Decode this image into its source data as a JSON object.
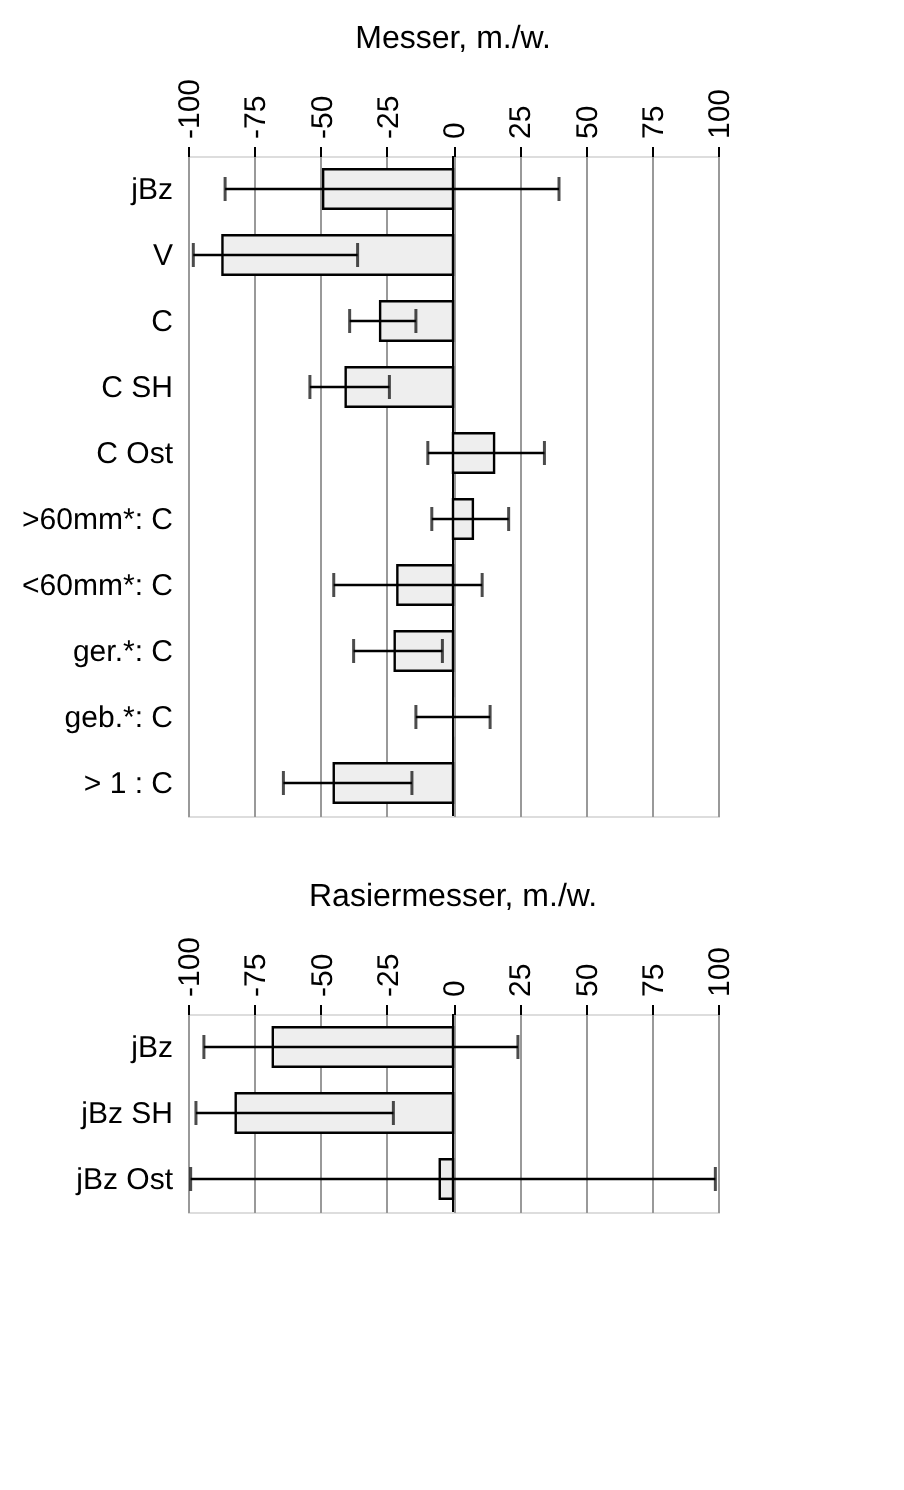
{
  "chart_data": [
    {
      "type": "bar",
      "orientation": "horizontal",
      "title": "Messer, m./w.",
      "categories": [
        "jBz",
        "V",
        "C",
        "C SH",
        "C Ost",
        ">60mm*: C",
        "<60mm*: C",
        "ger.*: C",
        "geb.*: C",
        "> 1 : C"
      ],
      "values": [
        -49,
        -87,
        -27.5,
        -40.5,
        15.5,
        7.5,
        -21,
        -22,
        0,
        -45
      ],
      "errors": [
        [
          -86,
          40
        ],
        [
          -98,
          -36
        ],
        [
          -39,
          -14
        ],
        [
          -54,
          -24
        ],
        [
          -9.5,
          34.5
        ],
        [
          -8,
          21
        ],
        [
          -45,
          11
        ],
        [
          -37.5,
          -4
        ],
        [
          -14,
          14
        ],
        [
          -64,
          -15.5
        ]
      ],
      "color": "#eeeeee",
      "xlim": [
        -100,
        100
      ],
      "xticks": [
        -100,
        -75,
        -50,
        -25,
        0,
        25,
        50,
        75,
        100
      ],
      "grid": "x"
    },
    {
      "type": "bar",
      "orientation": "horizontal",
      "title": "Rasiermesser, m./w.",
      "categories": [
        "jBz",
        "jBz SH",
        "jBz Ost"
      ],
      "values": [
        -68,
        -82,
        -5
      ],
      "errors": [
        [
          -94,
          24.5
        ],
        [
          -97,
          -22.5
        ],
        [
          -99,
          99
        ]
      ],
      "color": "#eeeeee",
      "xlim": [
        -100,
        100
      ],
      "xticks": [
        -100,
        -75,
        -50,
        -25,
        0,
        25,
        50,
        75,
        100
      ],
      "grid": "x"
    }
  ]
}
